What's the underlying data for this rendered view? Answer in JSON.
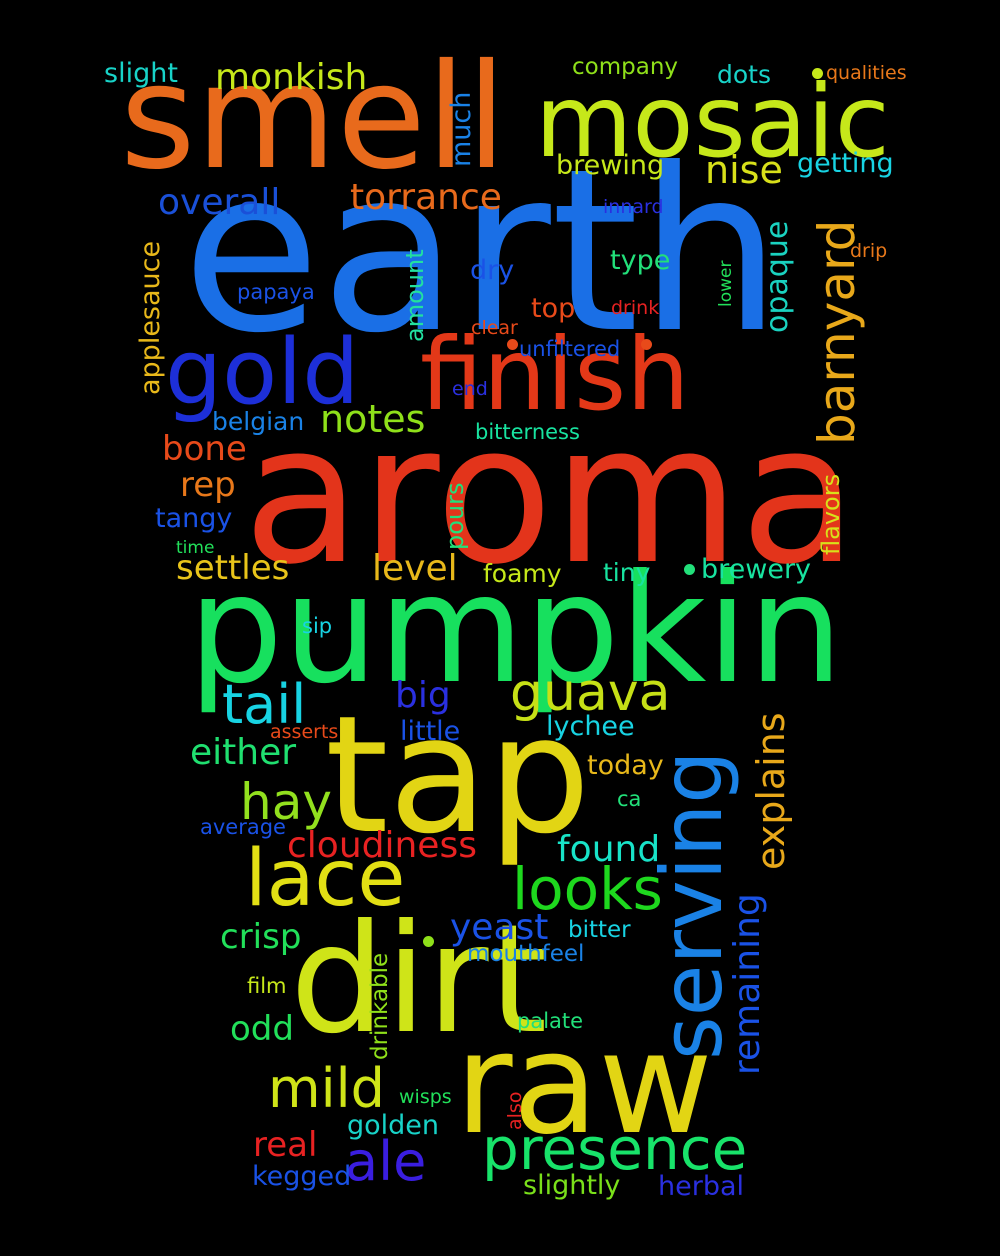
{
  "words": [
    {
      "text": "earth",
      "color": "#1a6fe6"
    },
    {
      "text": "aroma",
      "color": "#e3341b"
    },
    {
      "text": "pumpkin",
      "color": "#17e05e"
    },
    {
      "text": "tap",
      "color": "#e2d514"
    },
    {
      "text": "dirt",
      "color": "#cfe418"
    },
    {
      "text": "smell",
      "color": "#e86a1c"
    },
    {
      "text": "raw",
      "color": "#e2d514"
    },
    {
      "text": "mosaic",
      "color": "#c6e81a"
    },
    {
      "text": "finish",
      "color": "#e33818"
    },
    {
      "text": "gold",
      "color": "#1d2fd8"
    },
    {
      "text": "serving",
      "color": "#1a82e6"
    },
    {
      "text": "lace",
      "color": "#e2df14"
    },
    {
      "text": "looks",
      "color": "#1ed81e"
    },
    {
      "text": "presence",
      "color": "#18e36a"
    },
    {
      "text": "barnyard",
      "color": "#e8a81a"
    },
    {
      "text": "guava",
      "color": "#c6e016"
    },
    {
      "text": "tail",
      "color": "#18d3e3"
    },
    {
      "text": "ale",
      "color": "#3a1ee0"
    },
    {
      "text": "mild",
      "color": "#cfe418"
    },
    {
      "text": "hay",
      "color": "#92e01e"
    },
    {
      "text": "explains",
      "color": "#e8a81a"
    },
    {
      "text": "remaining",
      "color": "#1a52e6"
    },
    {
      "text": "monkish",
      "color": "#c6e81a"
    },
    {
      "text": "torrance",
      "color": "#e86a1c"
    },
    {
      "text": "overall",
      "color": "#1a50d8"
    },
    {
      "text": "notes",
      "color": "#8fe01a"
    },
    {
      "text": "cloudiness",
      "color": "#e82222"
    },
    {
      "text": "either",
      "color": "#20e070"
    },
    {
      "text": "found",
      "color": "#18e3c8"
    },
    {
      "text": "yeast",
      "color": "#1a52e6"
    },
    {
      "text": "big",
      "color": "#2a30e0"
    },
    {
      "text": "nise",
      "color": "#d8e01a"
    },
    {
      "text": "opaque",
      "color": "#1ad2c0"
    },
    {
      "text": "crisp",
      "color": "#22e05a"
    },
    {
      "text": "real",
      "color": "#e82222"
    },
    {
      "text": "settles",
      "color": "#e8c41a"
    },
    {
      "text": "level",
      "color": "#e8b81a"
    },
    {
      "text": "odd",
      "color": "#22e05a"
    },
    {
      "text": "bone",
      "color": "#e84a1a"
    },
    {
      "text": "rep",
      "color": "#e8781a"
    },
    {
      "text": "applesauce",
      "color": "#e8b81a"
    },
    {
      "text": "brewing",
      "color": "#c6e81a"
    },
    {
      "text": "brewery",
      "color": "#18e3a0"
    },
    {
      "text": "getting",
      "color": "#18d3e3"
    },
    {
      "text": "slight",
      "color": "#18d3c8"
    },
    {
      "text": "much",
      "color": "#1a82e6"
    },
    {
      "text": "flavors",
      "color": "#d8e01a"
    },
    {
      "text": "dry",
      "color": "#1a52e6"
    },
    {
      "text": "type",
      "color": "#22e07a"
    },
    {
      "text": "top",
      "color": "#e84a1a"
    },
    {
      "text": "amount",
      "color": "#22e0a0"
    },
    {
      "text": "pours",
      "color": "#22e07a"
    },
    {
      "text": "tangy",
      "color": "#1a52e6"
    },
    {
      "text": "belgian",
      "color": "#1a82e6"
    },
    {
      "text": "slightly",
      "color": "#7ae01a"
    },
    {
      "text": "herbal",
      "color": "#2a30e0"
    },
    {
      "text": "golden",
      "color": "#18d3c8"
    },
    {
      "text": "kegged",
      "color": "#1a52e6"
    },
    {
      "text": "lychee",
      "color": "#18d3e3"
    },
    {
      "text": "little",
      "color": "#1a52e6"
    },
    {
      "text": "today",
      "color": "#e8b81a"
    },
    {
      "text": "tiny",
      "color": "#18e3a0"
    },
    {
      "text": "foamy",
      "color": "#c6e81a"
    },
    {
      "text": "dots",
      "color": "#18d3c8"
    },
    {
      "text": "company",
      "color": "#8fe01a"
    },
    {
      "text": "drinkable",
      "color": "#8fe01a"
    },
    {
      "text": "bitter",
      "color": "#18d3e3"
    },
    {
      "text": "mouthfeel",
      "color": "#1a82e6"
    },
    {
      "text": "unfiltered",
      "color": "#1a52e6"
    },
    {
      "text": "bitterness",
      "color": "#18e3a0"
    },
    {
      "text": "papaya",
      "color": "#1a52e6"
    },
    {
      "text": "ca",
      "color": "#22e07a"
    },
    {
      "text": "film",
      "color": "#c6e81a"
    },
    {
      "text": "palate",
      "color": "#22e07a"
    },
    {
      "text": "average",
      "color": "#1a52e6"
    },
    {
      "text": "asserts",
      "color": "#e84a1a"
    },
    {
      "text": "sip",
      "color": "#18d3e3"
    },
    {
      "text": "time",
      "color": "#22e05a"
    },
    {
      "text": "wisps",
      "color": "#22e05a"
    },
    {
      "text": "also",
      "color": "#e82222"
    },
    {
      "text": "qualities",
      "color": "#e8781a"
    },
    {
      "text": "innard",
      "color": "#2a30e0"
    },
    {
      "text": "drip",
      "color": "#e8781a"
    },
    {
      "text": "drink",
      "color": "#e82222"
    },
    {
      "text": "clear",
      "color": "#e84a1a"
    },
    {
      "text": "lower",
      "color": "#22e05a"
    },
    {
      "text": "end",
      "color": "#2a30e0"
    }
  ],
  "dot_colors": [
    "#c6e81a",
    "#e84a1a",
    "#e84a1a",
    "#22e07a",
    "#8fe01a"
  ]
}
